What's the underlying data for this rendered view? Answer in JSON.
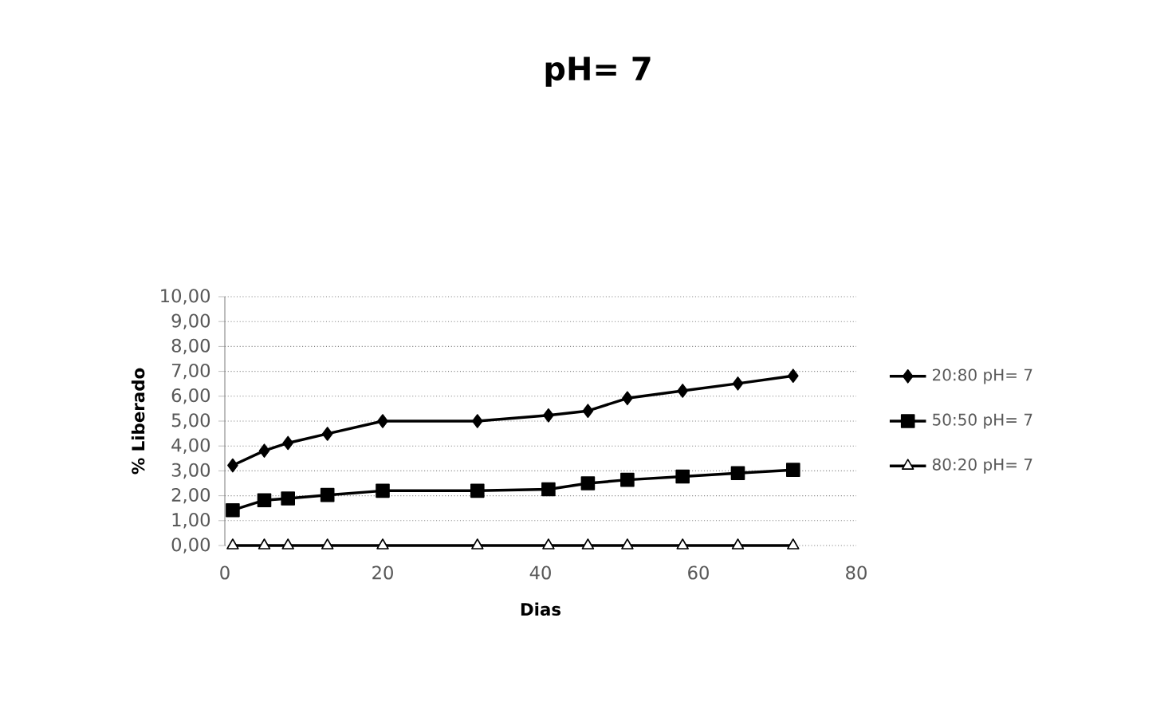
{
  "chart_data": {
    "type": "line",
    "title": "pH= 7",
    "xlabel": "Dias",
    "ylabel": "% Liberado",
    "x": [
      1,
      5,
      8,
      13,
      20,
      32,
      41,
      46,
      51,
      58,
      65,
      72
    ],
    "series": [
      {
        "name": "20:80 pH= 7",
        "color": "#000000",
        "marker": "diamond",
        "values": [
          3.22,
          3.81,
          4.12,
          4.49,
          5.0,
          5.0,
          5.23,
          5.41,
          5.92,
          6.22,
          6.51,
          6.82
        ]
      },
      {
        "name": "50:50 pH= 7",
        "color": "#000000",
        "marker": "square",
        "values": [
          1.42,
          1.82,
          1.89,
          2.03,
          2.2,
          2.2,
          2.26,
          2.5,
          2.64,
          2.77,
          2.91,
          3.04
        ]
      },
      {
        "name": "80:20 pH= 7",
        "color": "#000000",
        "marker": "triangle",
        "values": [
          0,
          0,
          0,
          0,
          0,
          0,
          0,
          0,
          0,
          0,
          0,
          0
        ]
      }
    ],
    "xlim": [
      0,
      80
    ],
    "xticks": [
      0,
      20,
      40,
      60,
      80
    ],
    "ylim": [
      0,
      10
    ],
    "yticks": [
      {
        "value": 0,
        "label": "0,00"
      },
      {
        "value": 1,
        "label": "1,00"
      },
      {
        "value": 2,
        "label": "2,00"
      },
      {
        "value": 3,
        "label": "3,00"
      },
      {
        "value": 4,
        "label": "4,00"
      },
      {
        "value": 5,
        "label": "5,00"
      },
      {
        "value": 6,
        "label": "6,00"
      },
      {
        "value": 7,
        "label": "7,00"
      },
      {
        "value": 8,
        "label": "8,00"
      },
      {
        "value": 9,
        "label": "9,00"
      },
      {
        "value": 10,
        "label": "10,00"
      }
    ],
    "grid": "y",
    "legend": "right",
    "line_style": "solid"
  }
}
